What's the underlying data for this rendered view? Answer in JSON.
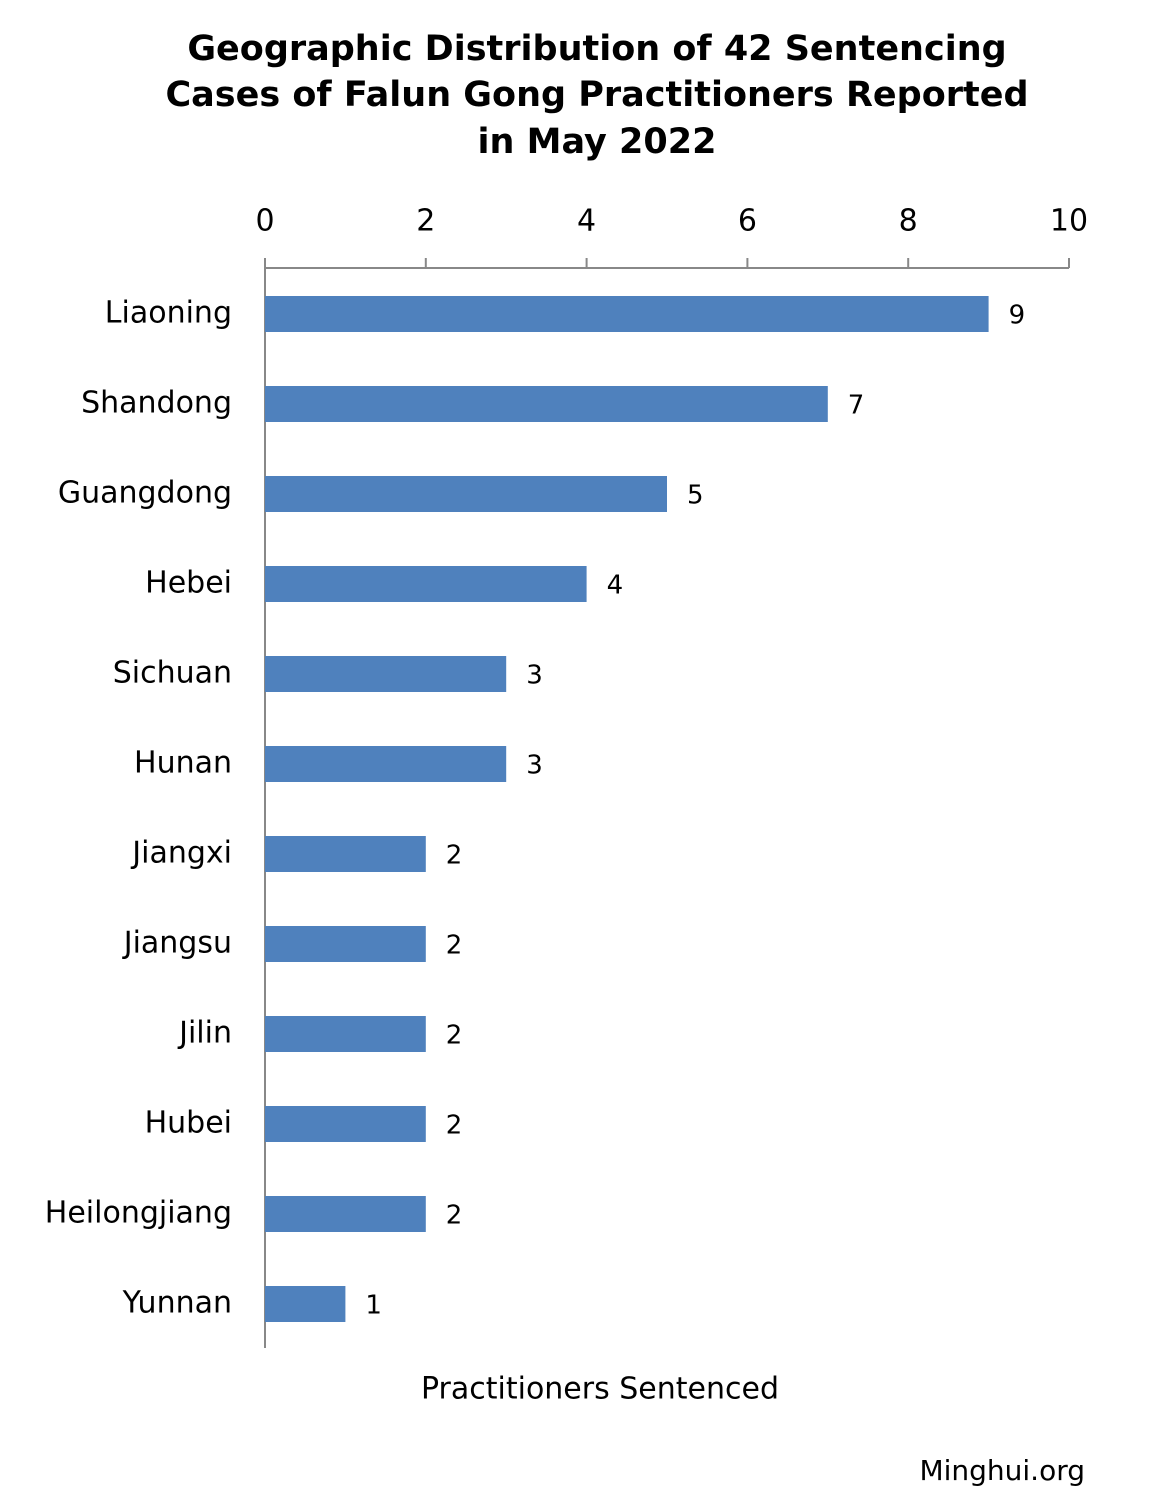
{
  "chart_data": {
    "type": "bar",
    "orientation": "horizontal",
    "title": [
      "Geographic Distribution of 42 Sentencing",
      "Cases of Falun Gong Practitioners Reported",
      "in May 2022"
    ],
    "x_label": "Practitioners Sentenced",
    "source": "Minghui.org",
    "categories": [
      "Liaoning",
      "Shandong",
      "Guangdong",
      "Hebei",
      "Sichuan",
      "Hunan",
      "Jiangxi",
      "Jiangsu",
      "Jilin",
      "Hubei",
      "Heilongjiang",
      "Yunnan"
    ],
    "values": [
      9,
      7,
      5,
      4,
      3,
      3,
      2,
      2,
      2,
      2,
      2,
      1
    ],
    "color": "#4f81bd",
    "xlim": [
      0,
      10
    ],
    "xticks": [
      0,
      2,
      4,
      6,
      8,
      10
    ],
    "grid": false
  }
}
